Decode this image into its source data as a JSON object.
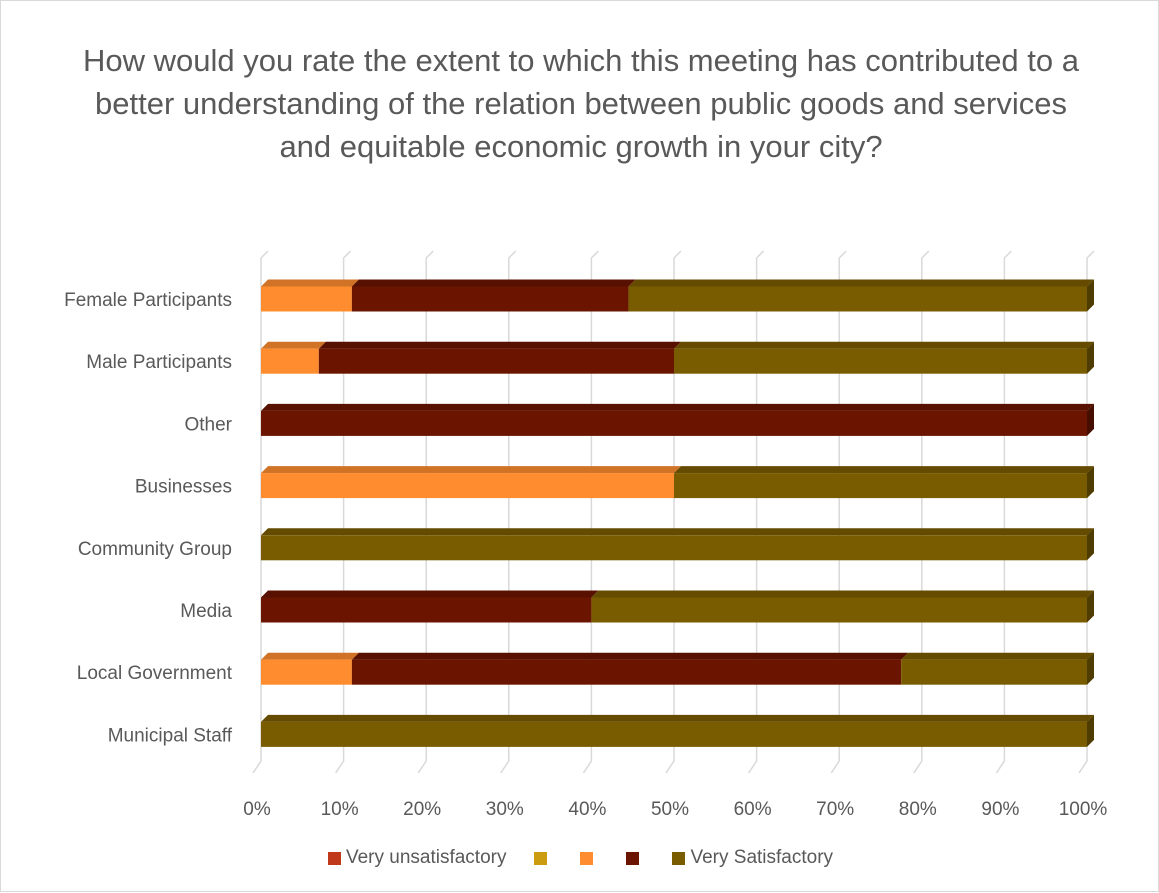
{
  "chart_data": {
    "type": "bar",
    "orientation": "horizontal",
    "stacked": "100%",
    "title": "How would you rate the extent to which this meeting has contributed to a better understanding of the relation between public goods and services and equitable economic growth in your city?",
    "categories": [
      "Female Participants",
      "Male Participants",
      "Other",
      "Businesses",
      "Community Group",
      "Media",
      "Local Government",
      "Municipal Staff"
    ],
    "series": [
      {
        "name": "Very unsatisfactory",
        "color": "#c0391b",
        "values": [
          0,
          0,
          0,
          0,
          0,
          0,
          0,
          0
        ]
      },
      {
        "name": "",
        "color": "#cc9c10",
        "values": [
          0,
          0,
          0,
          0,
          0,
          0,
          0,
          0
        ]
      },
      {
        "name": "",
        "color": "#ff8c2e",
        "values": [
          11,
          7,
          0,
          50,
          0,
          0,
          11,
          0
        ]
      },
      {
        "name": "",
        "color": "#6b1500",
        "values": [
          33.5,
          43,
          100,
          0,
          0,
          40,
          66.5,
          0
        ]
      },
      {
        "name": "Very Satisfactory",
        "color": "#7a5c00",
        "values": [
          55.5,
          50,
          0,
          50,
          100,
          60,
          22.5,
          100
        ]
      }
    ],
    "x_ticks": [
      "0%",
      "10%",
      "20%",
      "30%",
      "40%",
      "50%",
      "60%",
      "70%",
      "80%",
      "90%",
      "100%"
    ],
    "xlim": [
      0,
      100
    ],
    "grid": true,
    "legend_position": "bottom"
  }
}
